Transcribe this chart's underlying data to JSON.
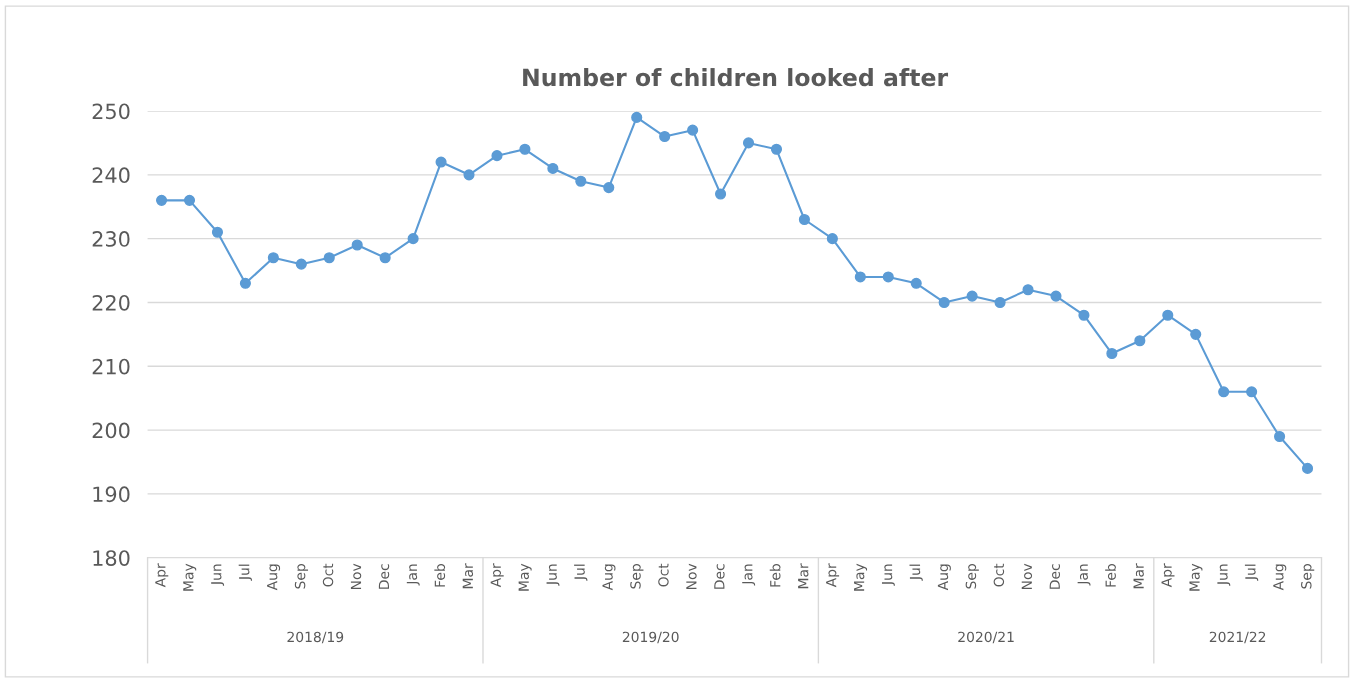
{
  "chart_data": {
    "type": "line",
    "title": "Number of children looked after",
    "categories": [
      "Apr",
      "May",
      "Jun",
      "Jul",
      "Aug",
      "Sep",
      "Oct",
      "Nov",
      "Dec",
      "Jan",
      "Feb",
      "Mar",
      "Apr",
      "May",
      "Jun",
      "Jul",
      "Aug",
      "Sep",
      "Oct",
      "Nov",
      "Dec",
      "Jan",
      "Feb",
      "Mar",
      "Apr",
      "May",
      "Jun",
      "Jul",
      "Aug",
      "Sep",
      "Oct",
      "Nov",
      "Dec",
      "Jan",
      "Feb",
      "Mar",
      "Apr",
      "May",
      "Jun",
      "Jul",
      "Aug",
      "Sep"
    ],
    "values": [
      236,
      236,
      231,
      223,
      227,
      226,
      227,
      229,
      227,
      230,
      242,
      240,
      243,
      244,
      241,
      239,
      238,
      249,
      246,
      247,
      237,
      245,
      244,
      233,
      230,
      224,
      224,
      223,
      220,
      221,
      220,
      222,
      221,
      218,
      212,
      214,
      218,
      215,
      206,
      206,
      199,
      194
    ],
    "color": "#5b9bd5",
    "ylim": [
      180,
      250
    ],
    "yticks": [
      180,
      190,
      200,
      210,
      220,
      230,
      240,
      250
    ],
    "grid": "y",
    "marker": "circle",
    "line_style": "solid",
    "annotations": [
      "2018/19",
      "2019/20",
      "2020/21",
      "2021/22"
    ]
  }
}
